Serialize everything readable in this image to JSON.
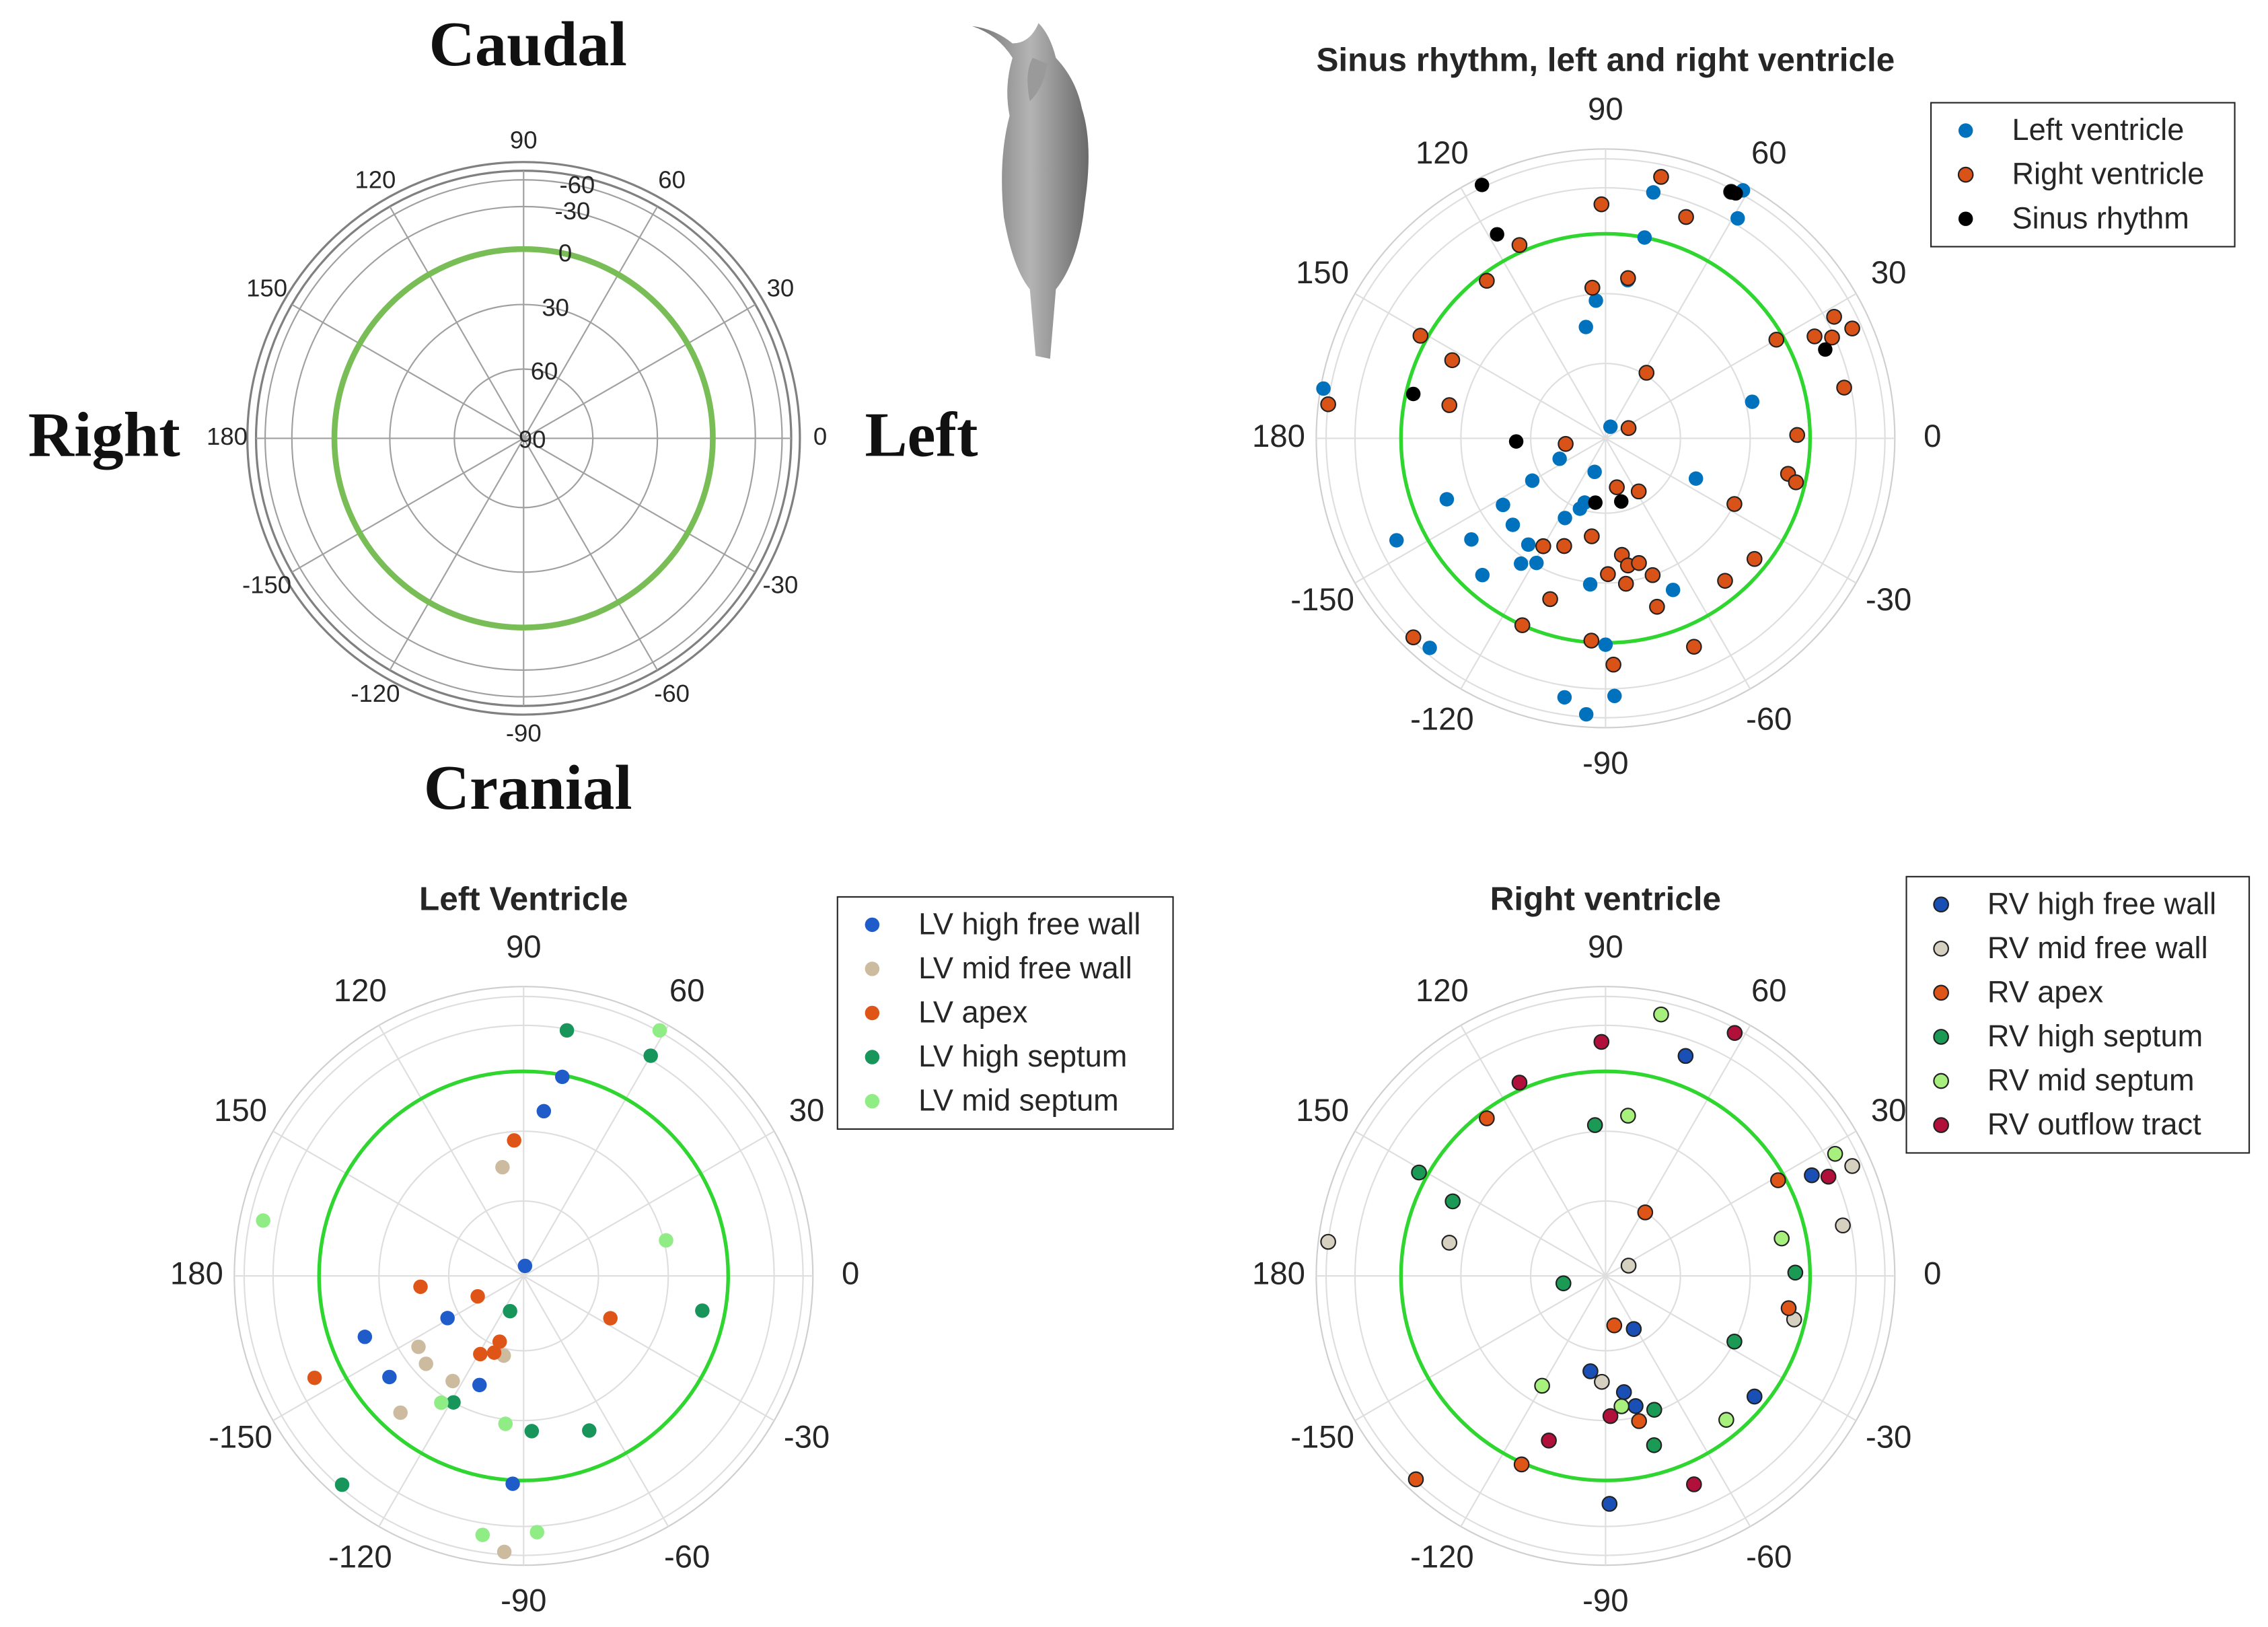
{
  "chart_data": [
    {
      "type": "polar",
      "annotations": {
        "top": "Caudal",
        "bottom": "Cranial",
        "left": "Right",
        "right": "Left"
      },
      "thetaticks": [
        0,
        30,
        60,
        90,
        120,
        150,
        180,
        -150,
        -120,
        -90,
        -60,
        -30
      ],
      "rlim": [
        90,
        -90
      ],
      "rscale": "equal-area",
      "rticks": [
        90,
        60,
        30,
        0,
        -30,
        -60
      ],
      "highlight_ring": {
        "value": 0,
        "color": "#79bd57"
      }
    },
    {
      "type": "polar_scatter",
      "title": "Sinus rhythm, left and right ventricle",
      "thetaticks": [
        0,
        30,
        60,
        90,
        120,
        150,
        180,
        -150,
        -120,
        -90,
        -60,
        -30
      ],
      "rlim": [
        90,
        -90
      ],
      "rscale": "equal-area",
      "rgrid": [
        60,
        30,
        0,
        -30,
        -60
      ],
      "highlight_ring": {
        "value": 0,
        "color": "#2fd62f"
      },
      "legend": "upper right",
      "series": [
        {
          "name": "Left ventricle",
          "color": "#0072bd",
          "edgecolor": null,
          "theta": [
            79,
            61,
            59,
            79,
            94,
            100,
            170,
            14,
            67,
            -156,
            -150,
            -108,
            -24,
            -159,
            -147,
            -137,
            -117,
            -108,
            -110,
            -154,
            -143,
            -126,
            -124,
            -119,
            -132,
            -96,
            -66,
            -90,
            -130,
            -88,
            -99,
            -94,
            82
          ],
          "r": [
            -30,
            -67,
            -35,
            0,
            33,
            44,
            -74,
            27,
            85,
            70,
            56,
            76,
            50,
            18,
            40,
            38,
            54,
            63,
            60,
            -17,
            19,
            36,
            27,
            31,
            11,
            29,
            20,
            -1,
            -52,
            -36,
            -40,
            -56,
            23
          ]
        },
        {
          "name": "Right ventricle",
          "color": "#d95319",
          "edgecolor": "#222222",
          "theta": [
            91,
            78,
            63,
            70,
            114,
            127,
            82,
            95,
            151,
            153,
            58,
            173,
            168,
            30,
            26,
            28,
            24,
            24,
            12,
            1,
            24,
            -172,
            -11,
            -13,
            -27,
            -77,
            -58,
            -120,
            -111,
            -98,
            -82,
            -80,
            -75,
            -71,
            -89,
            -82,
            -73,
            -39,
            -50,
            -109,
            -114,
            -94,
            -88,
            -134,
            -67
          ],
          "r": [
            -18,
            -45,
            -56,
            -19,
            -4,
            4,
            22,
            27,
            -4,
            17,
            59,
            -60,
            23,
            4,
            -17,
            -37,
            -48,
            -28,
            -25,
            7,
            80,
            74,
            10,
            5,
            30,
            70,
            65,
            39,
            43,
            50,
            42,
            37,
            37,
            30,
            34,
            29,
            15,
            7,
            10,
            18,
            0,
            1,
            -13,
            -56,
            -13
          ]
        },
        {
          "name": "Sinus rhythm",
          "color": "#000000",
          "edgecolor": null,
          "theta": [
            116,
            63,
            62,
            118,
            22,
            167,
            -178,
            -99,
            -76
          ],
          "r": [
            -64,
            -56,
            -57,
            -16,
            -20,
            4,
            54,
            64,
            64
          ]
        }
      ]
    },
    {
      "type": "polar_scatter",
      "title": "Left Ventricle",
      "thetaticks": [
        0,
        30,
        60,
        90,
        120,
        150,
        180,
        -150,
        -120,
        -90,
        -60,
        -30
      ],
      "rlim": [
        90,
        -90
      ],
      "rscale": "equal-area",
      "rgrid": [
        60,
        30,
        0,
        -30,
        -60
      ],
      "highlight_ring": {
        "value": 0,
        "color": "#2fd62f"
      },
      "legend": "upper right",
      "series": [
        {
          "name": "LV high free wall",
          "color": "#1f5bc9",
          "edgecolor": null,
          "theta": [
            79,
            83,
            82,
            -151,
            -159,
            -143,
            -112,
            -93
          ],
          "r": [
            1,
            20,
            86,
            55,
            18,
            19,
            42,
            -2
          ]
        },
        {
          "name": "LV mid free wall",
          "color": "#cdbb9f",
          "edgecolor": null,
          "theta": [
            101,
            -146,
            -138,
            -124,
            -104,
            -132,
            -94
          ],
          "r": [
            45,
            38,
            36,
            38,
            57,
            11,
            -56
          ]
        },
        {
          "name": "LV apex",
          "color": "#df5518",
          "edgecolor": null,
          "theta": [
            94,
            -174,
            -156,
            -26,
            -110,
            -111,
            -119,
            -154
          ],
          "r": [
            34,
            48,
            70,
            51,
            62,
            57,
            54,
            -17
          ]
        },
        {
          "name": "LV high septum",
          "color": "#17955a",
          "edgecolor": null,
          "theta": [
            80,
            60,
            -11,
            -111,
            -119,
            -87,
            -67,
            -131
          ],
          "r": [
            -29,
            -33,
            12,
            75,
            30,
            25,
            19,
            -56
          ]
        },
        {
          "name": "LV mid septum",
          "color": "#90ec84",
          "edgecolor": null,
          "theta": [
            61,
            14,
            168,
            -123,
            -97,
            -99,
            -87
          ],
          "r": [
            -62,
            29,
            -44,
            27,
            28,
            -40,
            -35
          ]
        }
      ]
    },
    {
      "type": "polar_scatter",
      "title": "Right ventricle",
      "thetaticks": [
        0,
        30,
        60,
        90,
        120,
        150,
        180,
        -150,
        -120,
        -90,
        -60,
        -30
      ],
      "rlim": [
        90,
        -90
      ],
      "rscale": "equal-area",
      "rgrid": [
        60,
        30,
        0,
        -30,
        -60
      ],
      "highlight_ring": {
        "value": 0,
        "color": "#2fd62f"
      },
      "legend": "upper right",
      "series": [
        {
          "name": "RV high free wall",
          "color": "#1a4fb5",
          "edgecolor": "#222222",
          "theta": [
            70,
            26,
            -62,
            -99,
            -81,
            -77,
            -39,
            -89
          ],
          "r": [
            -18,
            -15,
            66,
            51,
            42,
            35,
            7,
            -14
          ]
        },
        {
          "name": "RV mid free wall",
          "color": "#d6d0c0",
          "edgecolor": "#222222",
          "theta": [
            173,
            168,
            24,
            12,
            -13,
            24,
            -92
          ],
          "r": [
            -60,
            23,
            -48,
            -24,
            6,
            80,
            47
          ]
        },
        {
          "name": "RV apex",
          "color": "#df5518",
          "edgecolor": "#222222",
          "theta": [
            127,
            58,
            29,
            -80,
            -10,
            -77,
            -114,
            -133
          ],
          "r": [
            4,
            60,
            4,
            70,
            10,
            28,
            -1,
            -58
          ]
        },
        {
          "name": "RV high septum",
          "color": "#1b9a55",
          "edgecolor": "#222222",
          "theta": [
            94,
            151,
            154,
            -170,
            1,
            -27,
            -70,
            -74
          ],
          "r": [
            27,
            -5,
            18,
            73,
            8,
            30,
            31,
            15
          ]
        },
        {
          "name": "RV mid septum",
          "color": "#a8f07e",
          "edgecolor": "#222222",
          "theta": [
            78,
            82,
            28,
            12,
            -120,
            -50,
            -83
          ],
          "r": [
            -45,
            22,
            -38,
            13,
            38,
            9,
            36
          ]
        },
        {
          "name": "RV outflow tract",
          "color": "#b0103a",
          "edgecolor": "#222222",
          "theta": [
            91,
            62,
            114,
            24,
            -88,
            -109,
            -67
          ],
          "r": [
            -18,
            -54,
            -4,
            -25,
            32,
            16,
            -13
          ]
        }
      ]
    }
  ]
}
